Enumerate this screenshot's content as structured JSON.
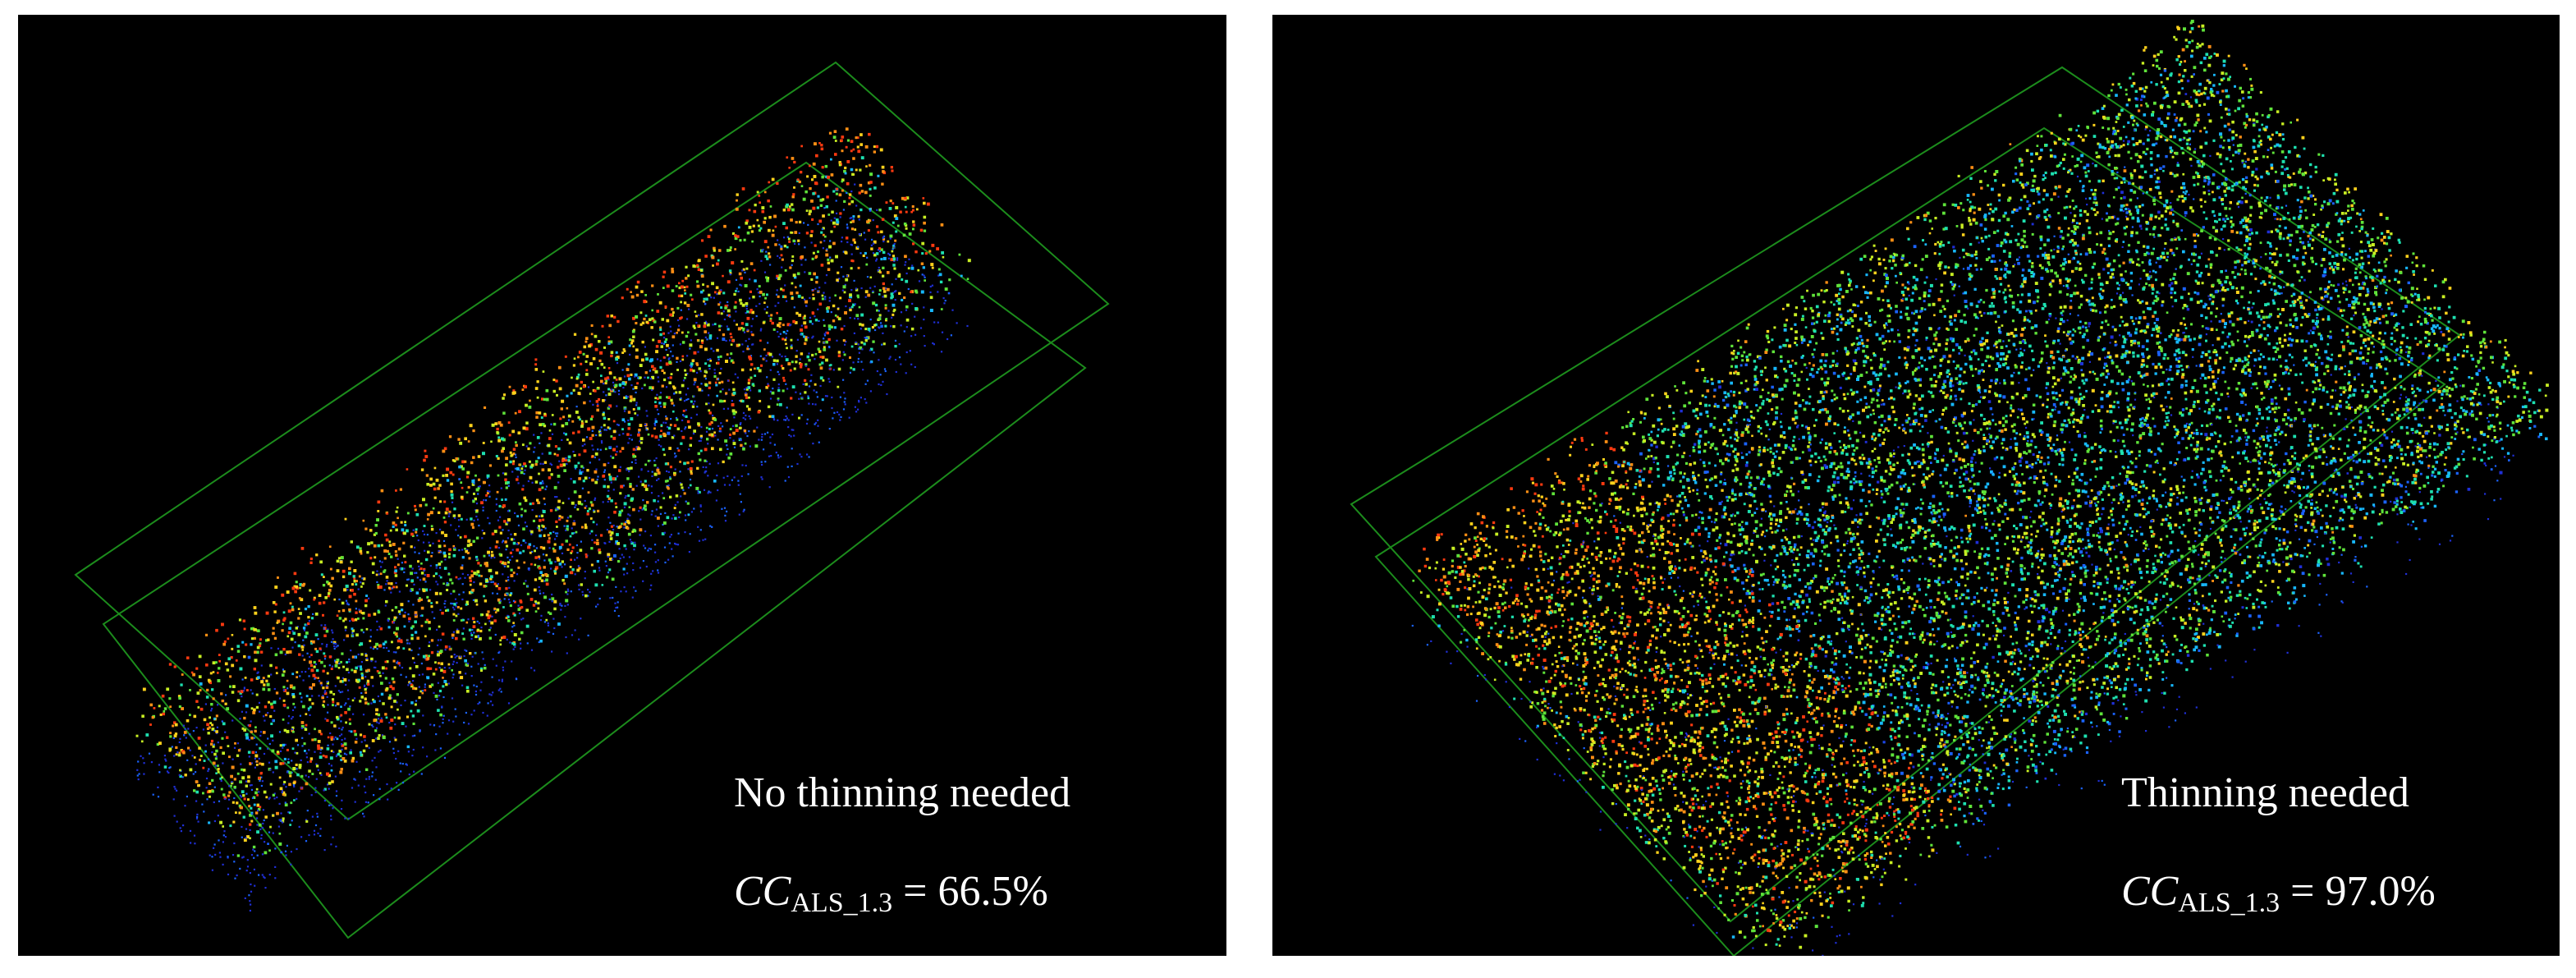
{
  "panels": [
    {
      "id": "left",
      "caption": "No thinning needed",
      "metric": {
        "symbol": "CC",
        "subscript": "ALS_1.3",
        "equals": " = ",
        "value": "66.5%"
      },
      "canopy_cover_percent": 66.5,
      "box_color": "#1c8c1c"
    },
    {
      "id": "right",
      "caption": "Thinning needed",
      "metric": {
        "symbol": "CC",
        "subscript": "ALS_1.3",
        "equals": " = ",
        "value": "97.0%"
      },
      "canopy_cover_percent": 97.0,
      "box_color": "#1c8c1c"
    }
  ],
  "colormap": [
    "#1f2fd6",
    "#1b63ff",
    "#18b8ff",
    "#1ee0b0",
    "#5fe33a",
    "#c8ee23",
    "#ffd21c",
    "#ff8f14",
    "#ff3a10"
  ]
}
